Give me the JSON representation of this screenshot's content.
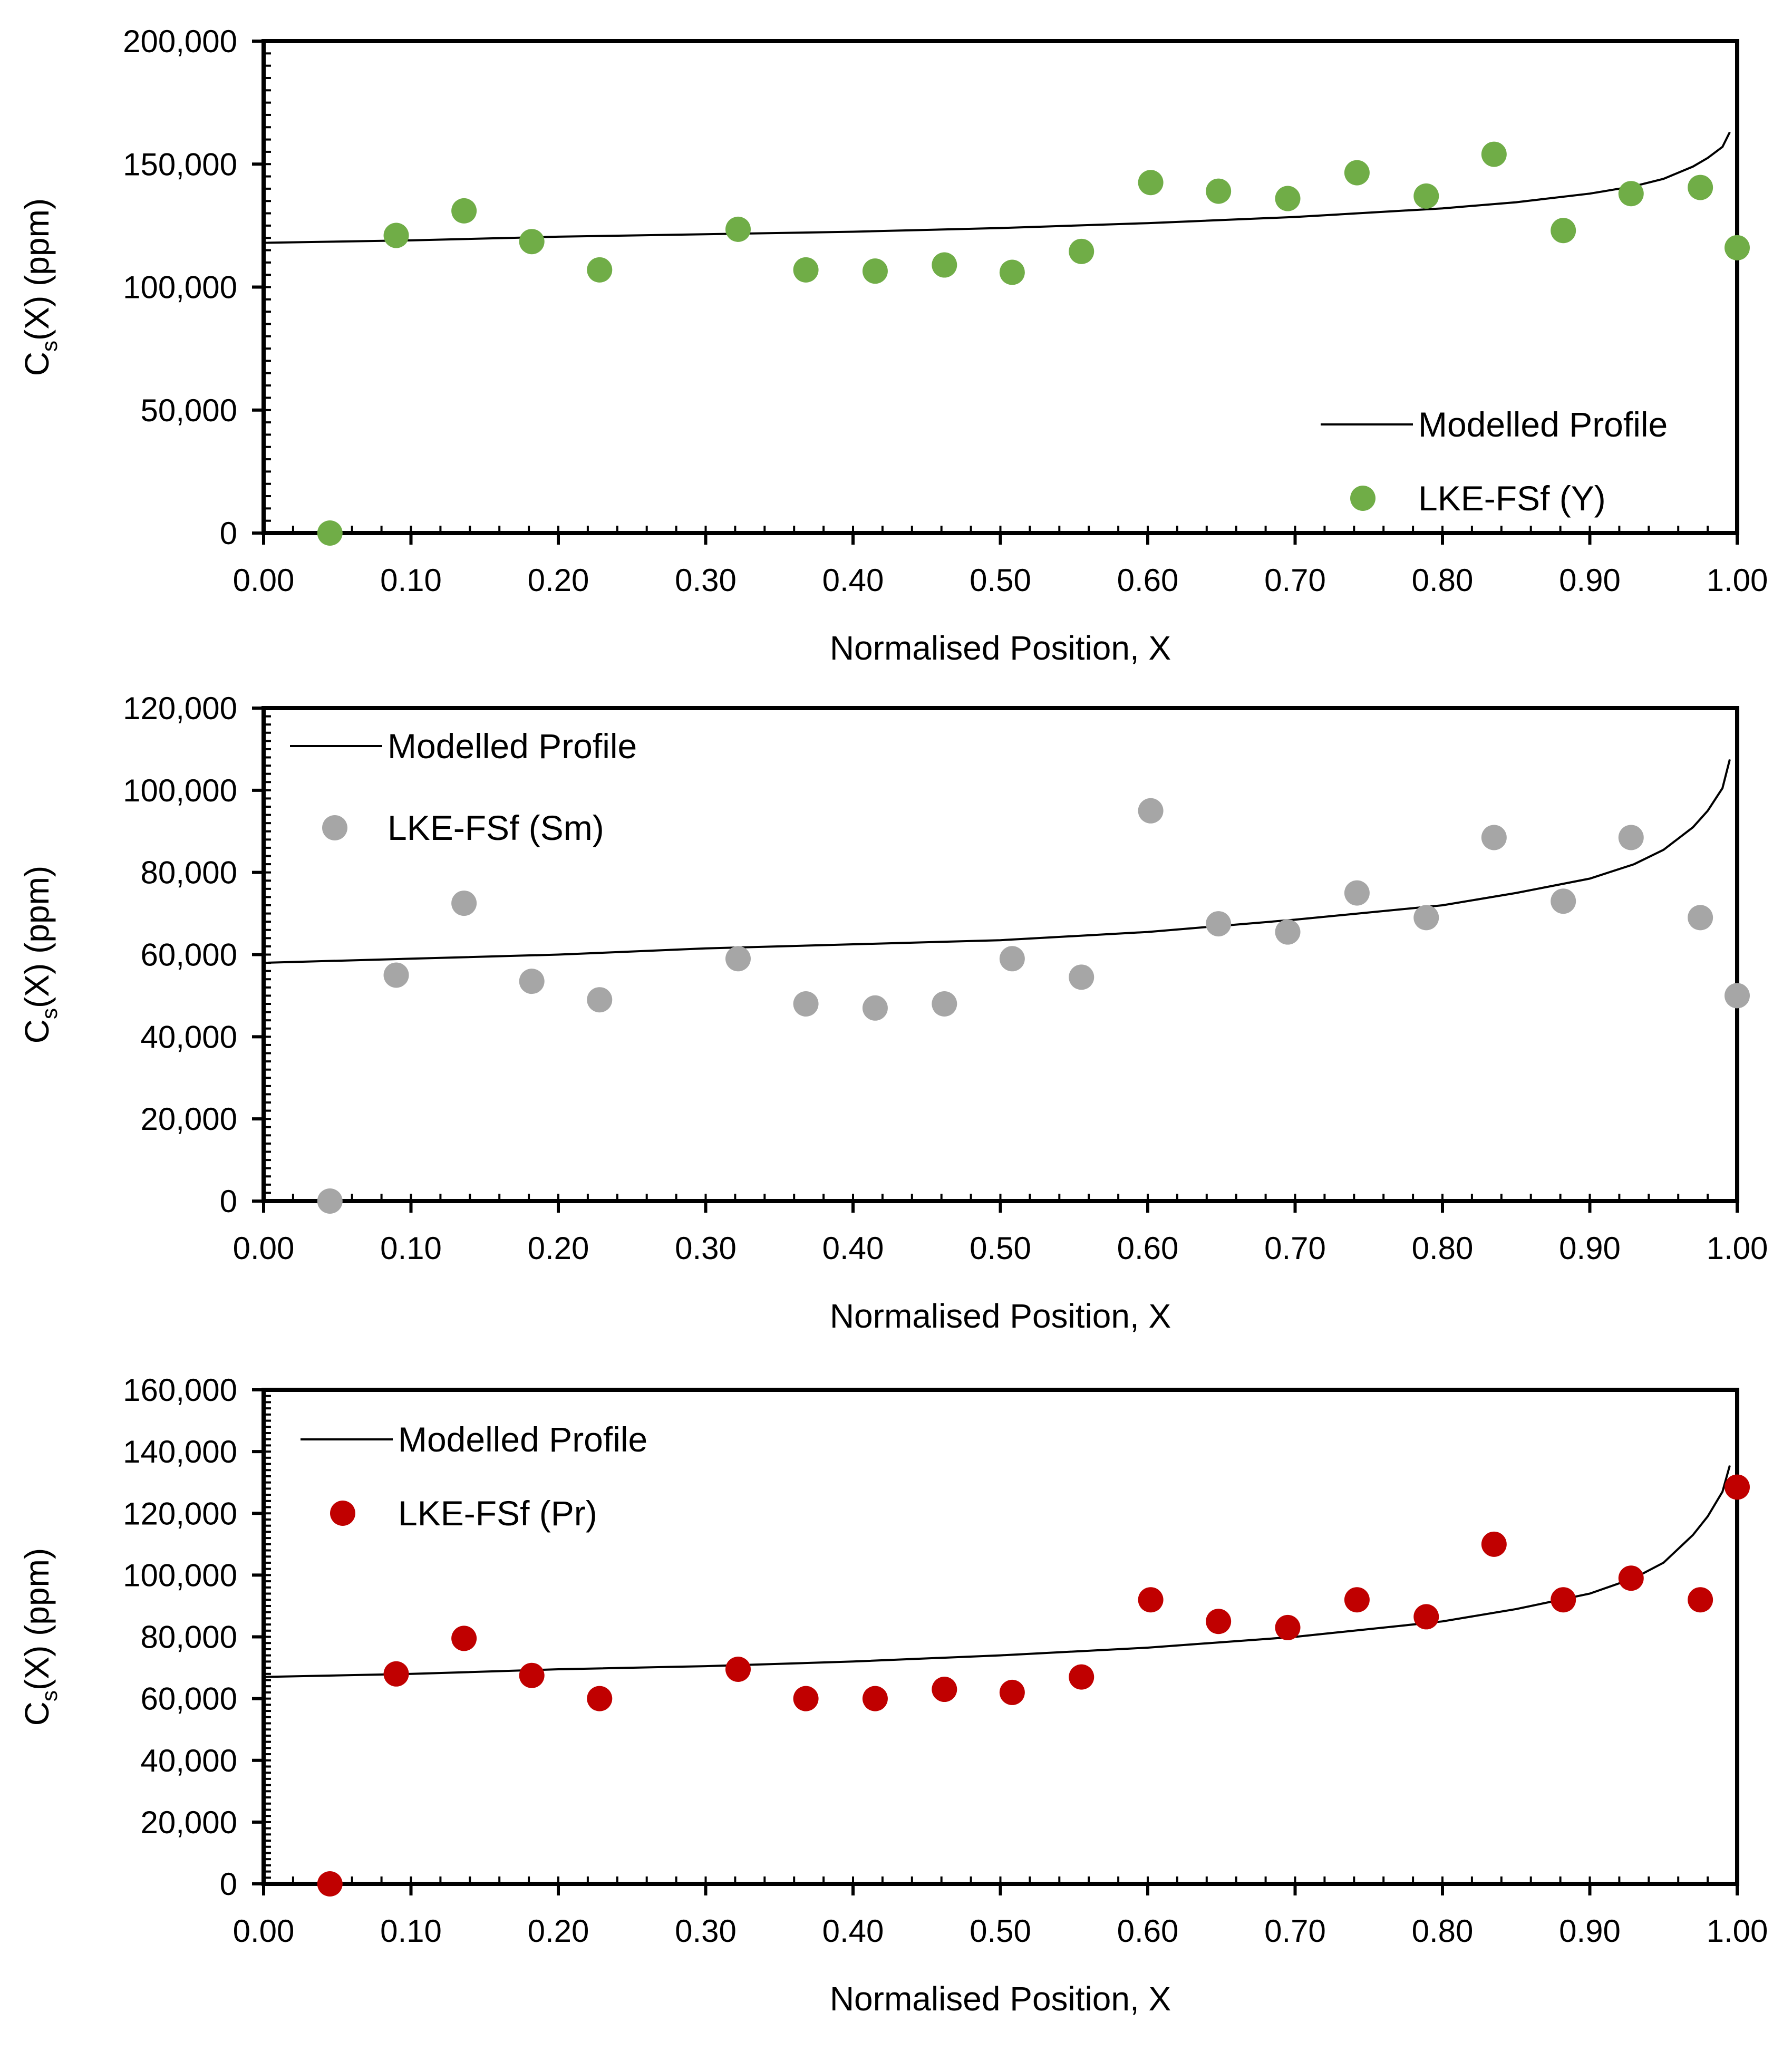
{
  "figure": {
    "background": "#ffffff"
  },
  "chart_data": [
    {
      "type": "scatter",
      "title": "",
      "xlabel": "Normalised Position, X",
      "ylabel": "Cs(X) (ppm)",
      "ylabel_main": "C",
      "ylabel_sub": "s",
      "ylabel_rest": "(X) (ppm)",
      "xlim": [
        0,
        1
      ],
      "ylim": [
        0,
        200000
      ],
      "x_ticks": [
        "0.00",
        "0.10",
        "0.20",
        "0.30",
        "0.40",
        "0.50",
        "0.60",
        "0.70",
        "0.80",
        "0.90",
        "1.00"
      ],
      "y_ticks": [
        "0",
        "50,000",
        "100,000",
        "150,000",
        "200,000"
      ],
      "y_tick_values": [
        0,
        50000,
        100000,
        150000,
        200000
      ],
      "grid": false,
      "legend_position": "bottom-right",
      "series": [
        {
          "name": "Modelled Profile",
          "kind": "line",
          "color": "#000000",
          "x": [
            0,
            0.1,
            0.2,
            0.3,
            0.4,
            0.5,
            0.6,
            0.7,
            0.8,
            0.85,
            0.9,
            0.93,
            0.95,
            0.97,
            0.98,
            0.99,
            0.995
          ],
          "y": [
            118000,
            119000,
            120500,
            121500,
            122500,
            124000,
            126000,
            128500,
            132000,
            134500,
            138000,
            141000,
            144000,
            149000,
            152500,
            157000,
            163000
          ]
        },
        {
          "name": "LKE-FSf (Y)",
          "kind": "scatter",
          "color": "#70ad47",
          "x": [
            0.045,
            0.09,
            0.136,
            0.182,
            0.228,
            0.322,
            0.368,
            0.415,
            0.462,
            0.508,
            0.555,
            0.602,
            0.648,
            0.695,
            0.742,
            0.789,
            0.835,
            0.882,
            0.928,
            0.975,
            1.0
          ],
          "y": [
            0,
            121000,
            131000,
            118500,
            107000,
            123500,
            107000,
            106500,
            109000,
            106000,
            114500,
            142500,
            139000,
            136000,
            146500,
            137000,
            154000,
            123000,
            138000,
            140500,
            116000
          ]
        }
      ]
    },
    {
      "type": "scatter",
      "title": "",
      "xlabel": "Normalised Position, X",
      "ylabel": "Cs(X) (ppm)",
      "ylabel_main": "C",
      "ylabel_sub": "s",
      "ylabel_rest": "(X) (ppm)",
      "xlim": [
        0,
        1
      ],
      "ylim": [
        0,
        120000
      ],
      "x_ticks": [
        "0.00",
        "0.10",
        "0.20",
        "0.30",
        "0.40",
        "0.50",
        "0.60",
        "0.70",
        "0.80",
        "0.90",
        "1.00"
      ],
      "y_ticks": [
        "0",
        "20,000",
        "40,000",
        "60,000",
        "80,000",
        "100,000",
        "120,000"
      ],
      "y_tick_values": [
        0,
        20000,
        40000,
        60000,
        80000,
        100000,
        120000
      ],
      "grid": false,
      "legend_position": "top-left",
      "series": [
        {
          "name": "Modelled Profile",
          "kind": "line",
          "color": "#000000",
          "x": [
            0,
            0.1,
            0.2,
            0.3,
            0.4,
            0.5,
            0.6,
            0.7,
            0.8,
            0.85,
            0.9,
            0.93,
            0.95,
            0.97,
            0.98,
            0.99,
            0.995
          ],
          "y": [
            58000,
            59000,
            60000,
            61500,
            62500,
            63500,
            65500,
            68500,
            72000,
            75000,
            78500,
            82000,
            85500,
            91000,
            95000,
            100500,
            107500
          ]
        },
        {
          "name": "LKE-FSf (Sm)",
          "kind": "scatter",
          "color": "#a6a6a6",
          "x": [
            0.045,
            0.09,
            0.136,
            0.182,
            0.228,
            0.322,
            0.368,
            0.415,
            0.462,
            0.508,
            0.555,
            0.602,
            0.648,
            0.695,
            0.742,
            0.789,
            0.835,
            0.882,
            0.928,
            0.975,
            1.0
          ],
          "y": [
            0,
            55000,
            72500,
            53500,
            49000,
            59000,
            48000,
            47000,
            48000,
            59000,
            54500,
            95000,
            67500,
            65500,
            75000,
            69000,
            88500,
            73000,
            88500,
            69000,
            50000
          ]
        }
      ]
    },
    {
      "type": "scatter",
      "title": "",
      "xlabel": "Normalised Position, X",
      "ylabel": "Cs(X) (ppm)",
      "ylabel_main": "C",
      "ylabel_sub": "s",
      "ylabel_rest": "(X) (ppm)",
      "xlim": [
        0,
        1
      ],
      "ylim": [
        0,
        160000
      ],
      "x_ticks": [
        "0.00",
        "0.10",
        "0.20",
        "0.30",
        "0.40",
        "0.50",
        "0.60",
        "0.70",
        "0.80",
        "0.90",
        "1.00"
      ],
      "y_ticks": [
        "0",
        "20,000",
        "40,000",
        "60,000",
        "80,000",
        "100,000",
        "120,000",
        "140,000",
        "160,000"
      ],
      "y_tick_values": [
        0,
        20000,
        40000,
        60000,
        80000,
        100000,
        120000,
        140000,
        160000
      ],
      "grid": false,
      "legend_position": "top-left",
      "series": [
        {
          "name": "Modelled Profile",
          "kind": "line",
          "color": "#000000",
          "x": [
            0,
            0.1,
            0.2,
            0.3,
            0.4,
            0.5,
            0.6,
            0.7,
            0.8,
            0.85,
            0.9,
            0.93,
            0.95,
            0.97,
            0.98,
            0.99,
            0.995
          ],
          "y": [
            67000,
            68000,
            69500,
            70500,
            72000,
            74000,
            76500,
            80000,
            85000,
            89000,
            94000,
            99000,
            104000,
            113000,
            119000,
            127000,
            135500
          ]
        },
        {
          "name": "LKE-FSf (Pr)",
          "kind": "scatter",
          "color": "#c00000",
          "x": [
            0.045,
            0.09,
            0.136,
            0.182,
            0.228,
            0.322,
            0.368,
            0.415,
            0.462,
            0.508,
            0.555,
            0.602,
            0.648,
            0.695,
            0.742,
            0.789,
            0.835,
            0.882,
            0.928,
            0.975,
            1.0
          ],
          "y": [
            0,
            68000,
            79500,
            67500,
            60000,
            69500,
            60000,
            60000,
            63000,
            62000,
            67000,
            92000,
            85000,
            83000,
            92000,
            86500,
            110000,
            92000,
            99000,
            92000,
            128500
          ]
        }
      ]
    }
  ]
}
